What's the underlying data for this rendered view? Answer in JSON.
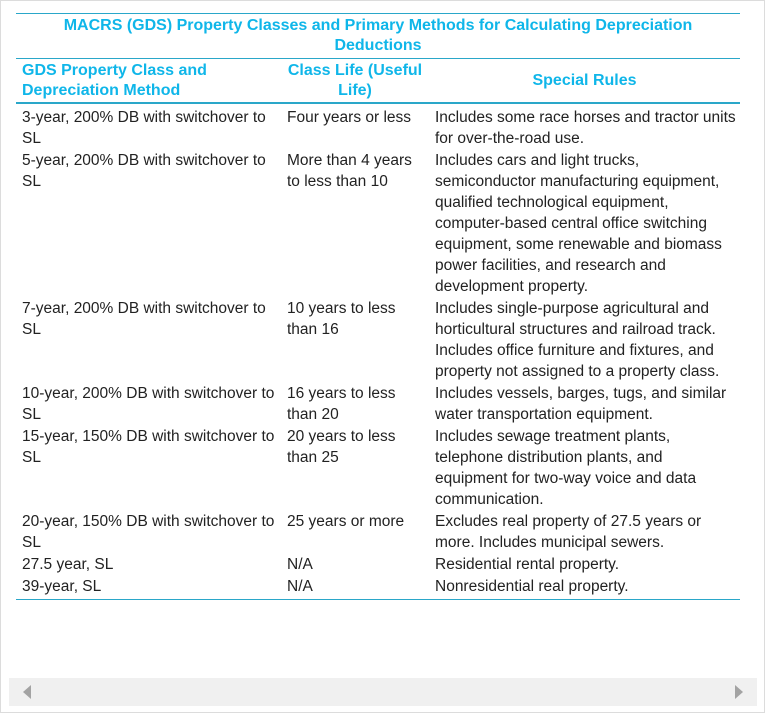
{
  "caption": "MACRS (GDS) Property Classes and Primary Methods for Calculating Depreciation Deductions",
  "headers": [
    "GDS Property Class and Depreciation Method",
    "Class Life (Useful Life)",
    "Special Rules"
  ],
  "rows": [
    [
      "3-year, 200% DB with switchover to SL",
      "Four years or less",
      "Includes some race horses and tractor units for over-the-road use."
    ],
    [
      "5-year, 200% DB with switchover to SL",
      "More than 4 years to less than 10",
      "Includes cars and light trucks, semiconductor manufacturing equipment, qualified technological equipment, computer-based central office switching equipment, some renewable and biomass power facilities, and research and development property."
    ],
    [
      "7-year, 200% DB with switchover to SL",
      "10 years to less than 16",
      "Includes single-purpose agricultural and horticultural structures and railroad track. Includes office furniture and fixtures, and property not assigned to a property class."
    ],
    [
      "10-year, 200% DB with switchover to SL",
      "16 years to less than 20",
      "Includes vessels, barges, tugs, and similar water transportation equipment."
    ],
    [
      "15-year, 150% DB with switchover to SL",
      "20 years to less than 25",
      "Includes sewage treatment plants, telephone distribution plants, and equipment for two-way voice and data communication."
    ],
    [
      "20-year, 150% DB with switchover to SL",
      "25 years or more",
      "Excludes real property of 27.5 years or more. Includes municipal sewers."
    ],
    [
      "27.5 year, SL",
      "N/A",
      "Residential rental property."
    ],
    [
      "39-year, SL",
      "N/A",
      "Nonresidential real property."
    ]
  ],
  "colors": {
    "accent": "#0fb6e9",
    "rule": "#2aa7c9",
    "text": "#222222"
  }
}
